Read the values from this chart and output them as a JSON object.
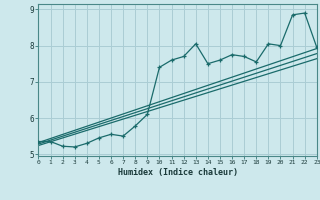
{
  "xlabel": "Humidex (Indice chaleur)",
  "ylabel": "",
  "bg_color": "#cde8ec",
  "line_color": "#1a6b6b",
  "grid_color": "#aacdd4",
  "x_data": [
    0,
    1,
    2,
    3,
    4,
    5,
    6,
    7,
    8,
    9,
    10,
    11,
    12,
    13,
    14,
    15,
    16,
    17,
    18,
    19,
    20,
    21,
    22,
    23
  ],
  "y_main": [
    5.35,
    5.35,
    5.22,
    5.2,
    5.3,
    5.45,
    5.55,
    5.5,
    5.78,
    6.1,
    7.4,
    7.6,
    7.7,
    8.05,
    7.5,
    7.6,
    7.75,
    7.7,
    7.55,
    8.05,
    8.0,
    8.85,
    8.9,
    7.95
  ],
  "line1_x": [
    0,
    23
  ],
  "line1_y": [
    5.32,
    7.92
  ],
  "line2_x": [
    0,
    23
  ],
  "line2_y": [
    5.28,
    7.78
  ],
  "line3_x": [
    0,
    23
  ],
  "line3_y": [
    5.24,
    7.64
  ],
  "xlim": [
    0,
    23
  ],
  "ylim": [
    4.95,
    9.15
  ],
  "yticks": [
    5,
    6,
    7,
    8,
    9
  ],
  "xticks": [
    0,
    1,
    2,
    3,
    4,
    5,
    6,
    7,
    8,
    9,
    10,
    11,
    12,
    13,
    14,
    15,
    16,
    17,
    18,
    19,
    20,
    21,
    22,
    23
  ]
}
